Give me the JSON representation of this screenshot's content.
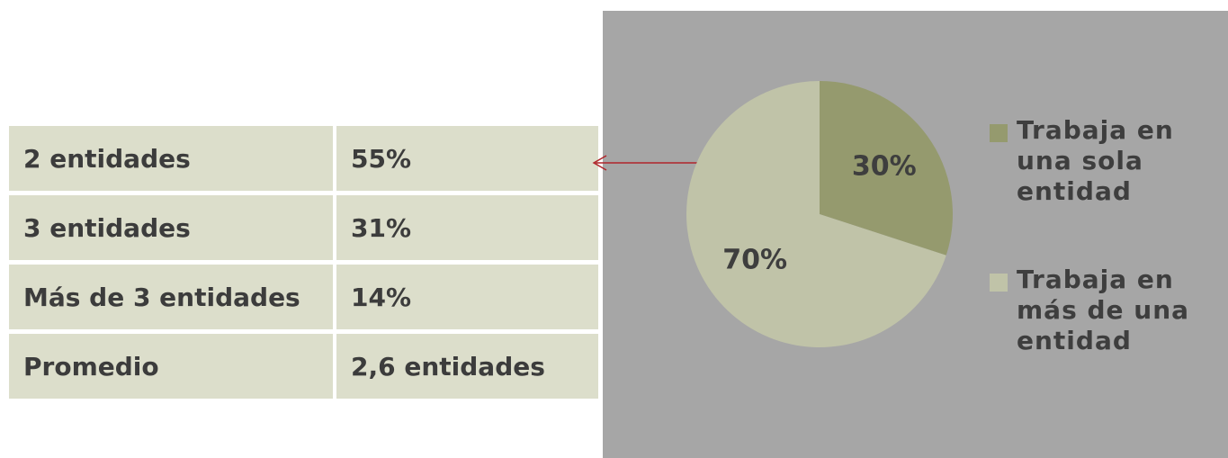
{
  "table": {
    "rows": [
      [
        "2 entidades",
        "55%"
      ],
      [
        "3 entidades",
        "31%"
      ],
      [
        "Más de 3 entidades",
        "14%"
      ],
      [
        "Promedio",
        "2,6 entidades"
      ]
    ]
  },
  "chart_data": {
    "type": "pie",
    "categories": [
      "Trabaja en una sola entidad",
      "Trabaja en más de una entidad"
    ],
    "values": [
      30,
      70
    ],
    "value_labels": [
      "30%",
      "70%"
    ],
    "colors": [
      "#959a6e",
      "#c0c3a8"
    ]
  }
}
